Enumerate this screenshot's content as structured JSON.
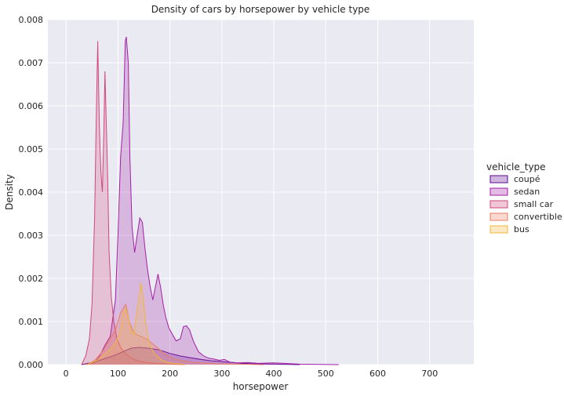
{
  "chart_data": {
    "type": "area",
    "subtype": "kde",
    "title": "Density of cars by horsepower by vehicle type",
    "xlabel": "horsepower",
    "ylabel": "Density",
    "xlim": [
      -35,
      785
    ],
    "ylim": [
      0,
      0.008
    ],
    "xticks": [
      0,
      100,
      200,
      300,
      400,
      500,
      600,
      700
    ],
    "yticks": [
      0.0,
      0.001,
      0.002,
      0.003,
      0.004,
      0.005,
      0.006,
      0.007,
      0.008
    ],
    "xtick_labels": [
      "0",
      "100",
      "200",
      "300",
      "400",
      "500",
      "600",
      "700"
    ],
    "ytick_labels": [
      "0.000",
      "0.001",
      "0.002",
      "0.003",
      "0.004",
      "0.005",
      "0.006",
      "0.007",
      "0.008"
    ],
    "grid": true,
    "legend": {
      "title": "vehicle_type",
      "position": "right"
    },
    "series": [
      {
        "name": "coupé",
        "color": "#5b0a8e",
        "points": [
          [
            30,
            0
          ],
          [
            50,
            5e-05
          ],
          [
            70,
            0.00012
          ],
          [
            90,
            0.0002
          ],
          [
            110,
            0.0003
          ],
          [
            125,
            0.00038
          ],
          [
            140,
            0.0004
          ],
          [
            160,
            0.00038
          ],
          [
            180,
            0.00034
          ],
          [
            200,
            0.00026
          ],
          [
            220,
            0.0002
          ],
          [
            240,
            0.00016
          ],
          [
            260,
            0.00012
          ],
          [
            280,
            9e-05
          ],
          [
            300,
            7e-05
          ],
          [
            320,
            5e-05
          ],
          [
            340,
            3e-05
          ],
          [
            360,
            2e-05
          ],
          [
            400,
            1e-05
          ],
          [
            450,
            0
          ]
        ]
      },
      {
        "name": "sedan",
        "color": "#a21fa6",
        "points": [
          [
            40,
            0
          ],
          [
            55,
            5e-05
          ],
          [
            65,
            0.0002
          ],
          [
            75,
            0.00045
          ],
          [
            85,
            0.00065
          ],
          [
            95,
            0.0015
          ],
          [
            100,
            0.003
          ],
          [
            105,
            0.0048
          ],
          [
            110,
            0.0056
          ],
          [
            114,
            0.0075
          ],
          [
            116,
            0.0076
          ],
          [
            120,
            0.007
          ],
          [
            123,
            0.0048
          ],
          [
            127,
            0.0032
          ],
          [
            132,
            0.0026
          ],
          [
            137,
            0.003
          ],
          [
            142,
            0.0034
          ],
          [
            147,
            0.0033
          ],
          [
            152,
            0.0027
          ],
          [
            157,
            0.0022
          ],
          [
            162,
            0.0018
          ],
          [
            167,
            0.0015
          ],
          [
            172,
            0.0018
          ],
          [
            177,
            0.0021
          ],
          [
            182,
            0.0018
          ],
          [
            187,
            0.0014
          ],
          [
            192,
            0.0011
          ],
          [
            198,
            0.00085
          ],
          [
            205,
            0.0007
          ],
          [
            212,
            0.00055
          ],
          [
            220,
            0.0006
          ],
          [
            226,
            0.00088
          ],
          [
            232,
            0.0009
          ],
          [
            238,
            0.0008
          ],
          [
            245,
            0.00055
          ],
          [
            255,
            0.0003
          ],
          [
            265,
            0.0002
          ],
          [
            275,
            0.00015
          ],
          [
            285,
            0.00013
          ],
          [
            295,
            0.0001
          ],
          [
            305,
            0.00012
          ],
          [
            315,
            6e-05
          ],
          [
            330,
            4e-05
          ],
          [
            350,
            5e-05
          ],
          [
            370,
            3e-05
          ],
          [
            400,
            4e-05
          ],
          [
            450,
            1e-05
          ],
          [
            525,
            0
          ]
        ]
      },
      {
        "name": "small car",
        "color": "#d2477a",
        "points": [
          [
            30,
            0
          ],
          [
            38,
            0.0002
          ],
          [
            45,
            0.0006
          ],
          [
            50,
            0.0014
          ],
          [
            55,
            0.0034
          ],
          [
            58,
            0.0056
          ],
          [
            61,
            0.0075
          ],
          [
            64,
            0.0056
          ],
          [
            67,
            0.0045
          ],
          [
            70,
            0.004
          ],
          [
            73,
            0.0055
          ],
          [
            75,
            0.0068
          ],
          [
            77,
            0.0058
          ],
          [
            80,
            0.0044
          ],
          [
            83,
            0.0026
          ],
          [
            87,
            0.0016
          ],
          [
            92,
            0.001
          ],
          [
            98,
            0.0006
          ],
          [
            105,
            0.0004
          ],
          [
            115,
            0.00025
          ],
          [
            125,
            0.00016
          ],
          [
            135,
            0.0001
          ],
          [
            150,
            6e-05
          ],
          [
            170,
            3e-05
          ],
          [
            200,
            1e-05
          ],
          [
            230,
            0
          ]
        ]
      },
      {
        "name": "convertible",
        "color": "#e87f5f",
        "points": [
          [
            40,
            0
          ],
          [
            55,
            0.0001
          ],
          [
            70,
            0.0003
          ],
          [
            85,
            0.0006
          ],
          [
            95,
            0.0008
          ],
          [
            105,
            0.0012
          ],
          [
            115,
            0.0014
          ],
          [
            122,
            0.001
          ],
          [
            128,
            0.0008
          ],
          [
            135,
            0.0007
          ],
          [
            145,
            0.00065
          ],
          [
            155,
            0.0006
          ],
          [
            165,
            0.0005
          ],
          [
            175,
            0.0004
          ],
          [
            190,
            0.00025
          ],
          [
            205,
            0.00015
          ],
          [
            220,
            0.0001
          ],
          [
            240,
            6e-05
          ],
          [
            260,
            4e-05
          ],
          [
            290,
            2e-05
          ],
          [
            330,
            1e-05
          ],
          [
            380,
            0
          ]
        ]
      },
      {
        "name": "bus",
        "color": "#f2b73c",
        "points": [
          [
            40,
            0
          ],
          [
            60,
            0.0001
          ],
          [
            80,
            0.0003
          ],
          [
            95,
            0.0005
          ],
          [
            105,
            0.0008
          ],
          [
            110,
            0.0012
          ],
          [
            115,
            0.0013
          ],
          [
            120,
            0.0011
          ],
          [
            125,
            0.0008
          ],
          [
            130,
            0.0007
          ],
          [
            135,
            0.0011
          ],
          [
            140,
            0.0015
          ],
          [
            144,
            0.0019
          ],
          [
            148,
            0.0016
          ],
          [
            153,
            0.001
          ],
          [
            160,
            0.0005
          ],
          [
            170,
            0.00025
          ],
          [
            185,
            0.0001
          ],
          [
            200,
            4e-05
          ],
          [
            230,
            0
          ]
        ]
      }
    ]
  }
}
